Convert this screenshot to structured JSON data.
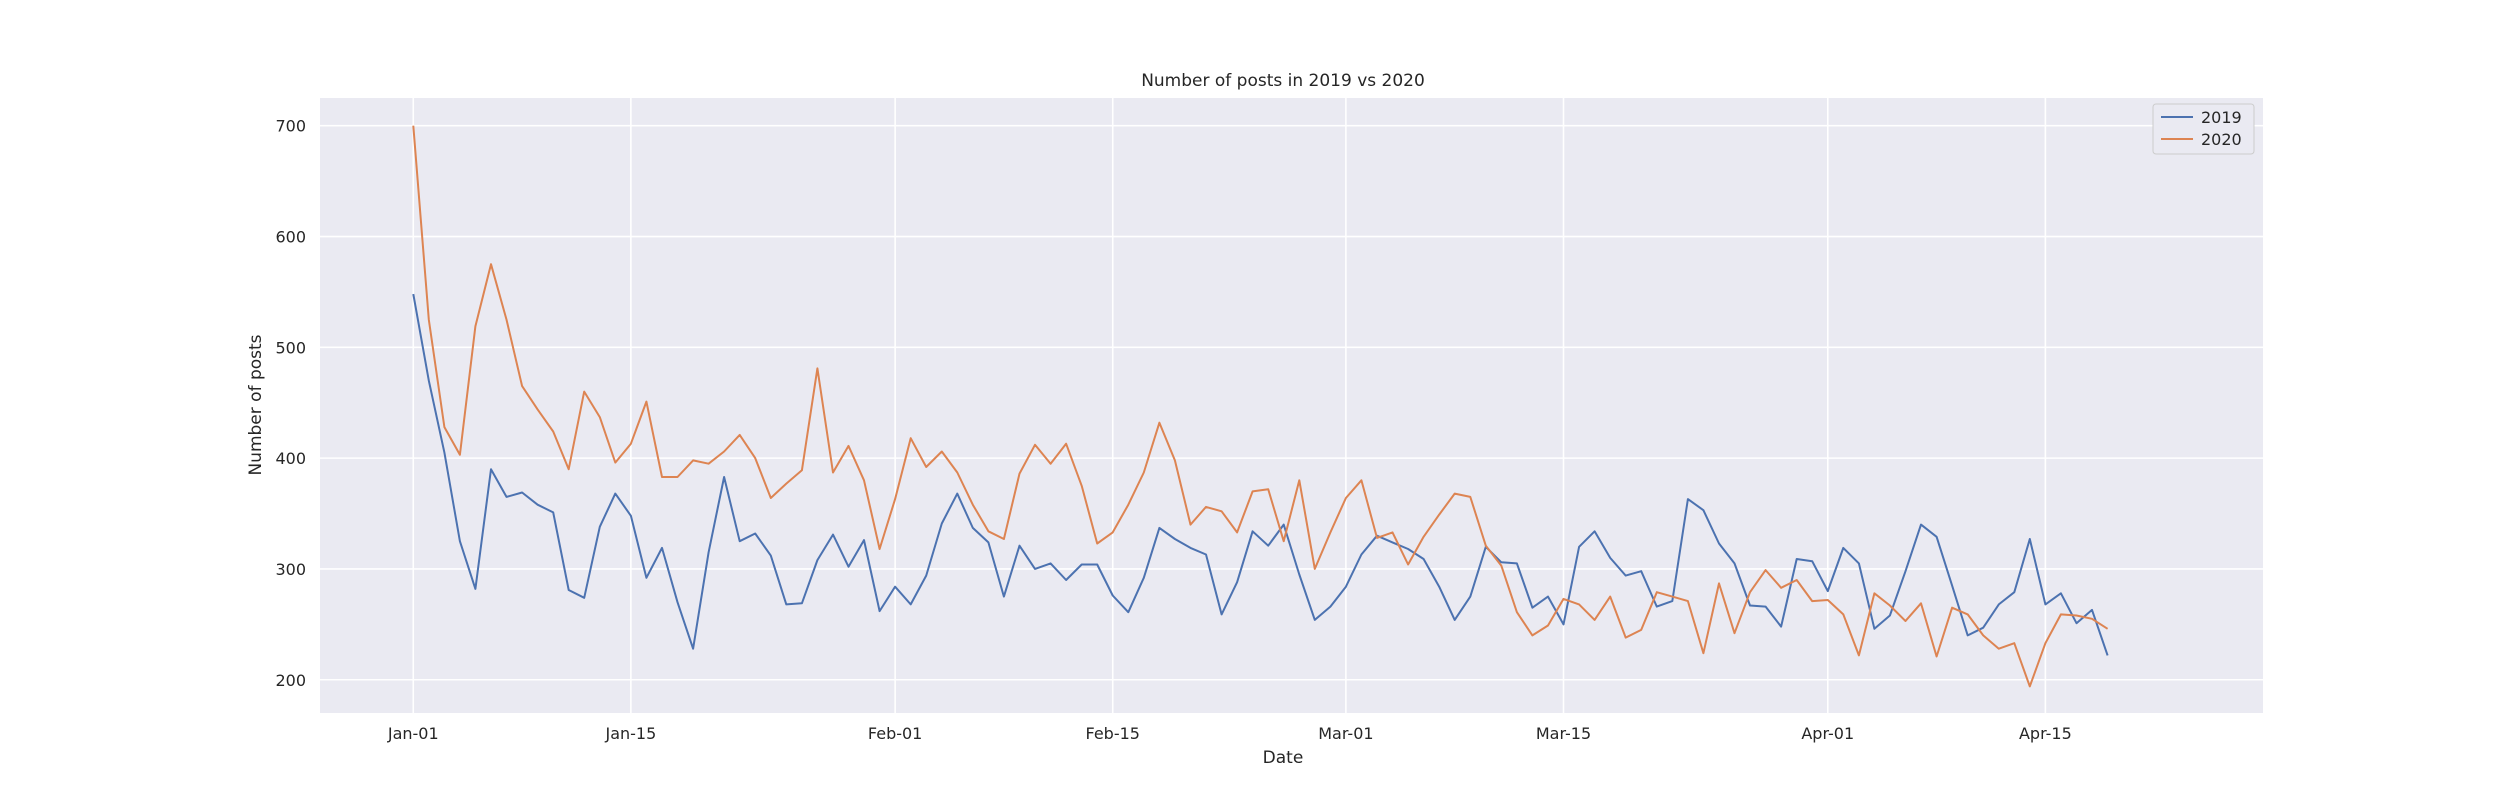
{
  "chart_data": {
    "type": "line",
    "title": "Number of posts in 2019 vs 2020",
    "xlabel": "Date",
    "ylabel": "Number of posts",
    "x_start": "Jan-01",
    "x_end": "Apr-21",
    "xlim": [
      "Dec-26",
      "Apr-29"
    ],
    "ylim": [
      170,
      725
    ],
    "x_ticks": [
      "Jan-01",
      "Jan-15",
      "Feb-01",
      "Feb-15",
      "Mar-01",
      "Mar-15",
      "Apr-01",
      "Apr-15"
    ],
    "y_ticks": [
      200,
      300,
      400,
      500,
      600,
      700
    ],
    "grid": true,
    "legend_position": "top-right",
    "series": [
      {
        "name": "2019",
        "color": "#4c72b0",
        "values": [
          548,
          470,
          405,
          325,
          282,
          390,
          365,
          369,
          358,
          351,
          281,
          274,
          338,
          368,
          348,
          292,
          319,
          270,
          228,
          315,
          383,
          325,
          332,
          312,
          268,
          269,
          308,
          331,
          302,
          326,
          262,
          284,
          268,
          294,
          341,
          368,
          337,
          324,
          275,
          321,
          300,
          305,
          290,
          304,
          304,
          276,
          261,
          292,
          337,
          327,
          319,
          313,
          259,
          288,
          334,
          321,
          340,
          295,
          254,
          266,
          284,
          313,
          330,
          324,
          318,
          309,
          284,
          254,
          275,
          320,
          306,
          305,
          265,
          275,
          250,
          320,
          334,
          310,
          294,
          298,
          266,
          271,
          363,
          353,
          323,
          305,
          267,
          266,
          248,
          309,
          307,
          280,
          319,
          305,
          246,
          258,
          298,
          340,
          329,
          285,
          240,
          247,
          268,
          279,
          327,
          268,
          278,
          251,
          263,
          222
        ]
      },
      {
        "name": "2020",
        "color": "#dd8452",
        "values": [
          700,
          525,
          428,
          403,
          519,
          575,
          525,
          465,
          444,
          424,
          390,
          460,
          437,
          396,
          413,
          451,
          383,
          383,
          398,
          395,
          406,
          421,
          400,
          364,
          377,
          389,
          481,
          387,
          411,
          380,
          318,
          363,
          418,
          392,
          406,
          387,
          358,
          334,
          327,
          386,
          412,
          395,
          413,
          375,
          323,
          333,
          358,
          387,
          432,
          398,
          340,
          356,
          352,
          333,
          370,
          372,
          325,
          380,
          300,
          333,
          364,
          380,
          328,
          333,
          304,
          329,
          349,
          368,
          365,
          321,
          303,
          261,
          240,
          249,
          273,
          268,
          254,
          275,
          238,
          245,
          279,
          275,
          271,
          224,
          287,
          242,
          279,
          299,
          283,
          290,
          271,
          272,
          259,
          222,
          278,
          267,
          253,
          269,
          221,
          265,
          259,
          240,
          228,
          233,
          194,
          233,
          259,
          258,
          255,
          246
        ]
      }
    ]
  }
}
